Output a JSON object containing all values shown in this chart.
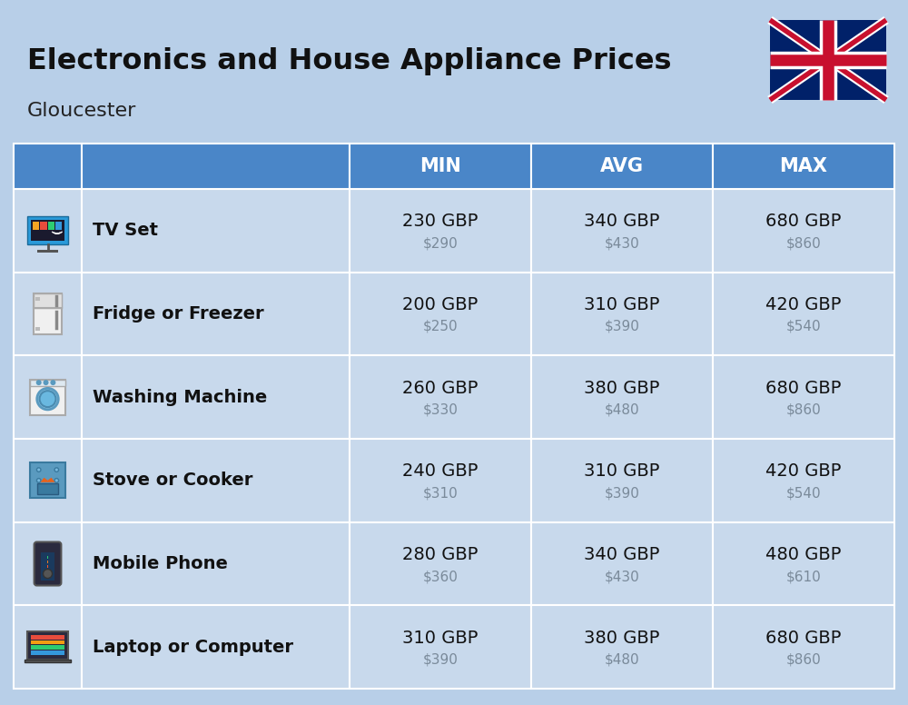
{
  "title": "Electronics and House Appliance Prices",
  "subtitle": "Gloucester",
  "background_color": "#b8cfe8",
  "header_color": "#4a86c8",
  "header_text_color": "#ffffff",
  "row_color": "#c8d9ec",
  "divider_color": "#ffffff",
  "columns": [
    "MIN",
    "AVG",
    "MAX"
  ],
  "items": [
    {
      "name": "TV Set",
      "min_gbp": "230 GBP",
      "min_usd": "$290",
      "avg_gbp": "340 GBP",
      "avg_usd": "$430",
      "max_gbp": "680 GBP",
      "max_usd": "$860"
    },
    {
      "name": "Fridge or Freezer",
      "min_gbp": "200 GBP",
      "min_usd": "$250",
      "avg_gbp": "310 GBP",
      "avg_usd": "$390",
      "max_gbp": "420 GBP",
      "max_usd": "$540"
    },
    {
      "name": "Washing Machine",
      "min_gbp": "260 GBP",
      "min_usd": "$330",
      "avg_gbp": "380 GBP",
      "avg_usd": "$480",
      "max_gbp": "680 GBP",
      "max_usd": "$860"
    },
    {
      "name": "Stove or Cooker",
      "min_gbp": "240 GBP",
      "min_usd": "$310",
      "avg_gbp": "310 GBP",
      "avg_usd": "$390",
      "max_gbp": "420 GBP",
      "max_usd": "$540"
    },
    {
      "name": "Mobile Phone",
      "min_gbp": "280 GBP",
      "min_usd": "$360",
      "avg_gbp": "340 GBP",
      "avg_usd": "$430",
      "max_gbp": "480 GBP",
      "max_usd": "$610"
    },
    {
      "name": "Laptop or Computer",
      "min_gbp": "310 GBP",
      "min_usd": "$390",
      "avg_gbp": "380 GBP",
      "avg_usd": "$480",
      "max_gbp": "680 GBP",
      "max_usd": "$860"
    }
  ]
}
